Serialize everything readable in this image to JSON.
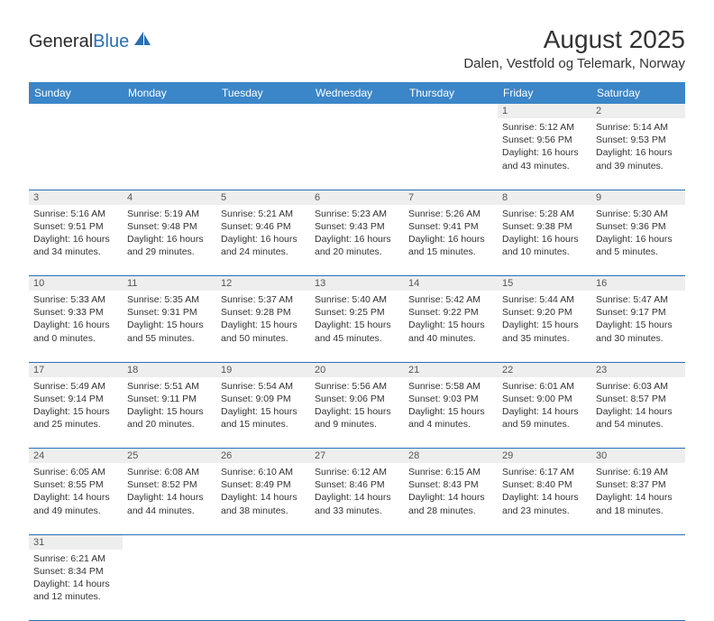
{
  "logo": {
    "text_dark": "General",
    "text_blue": "Blue"
  },
  "title": "August 2025",
  "location": "Dalen, Vestfold og Telemark, Norway",
  "colors": {
    "header_bg": "#3b86c8",
    "header_text": "#ffffff",
    "daynum_bg": "#eeeeee",
    "border": "#2a6fb5",
    "logo_blue": "#2a6fb5",
    "text": "#333333"
  },
  "typography": {
    "title_fontsize": 28,
    "location_fontsize": 15,
    "dayheader_fontsize": 12,
    "cell_fontsize": 10.5,
    "logo_fontsize": 20
  },
  "day_headers": [
    "Sunday",
    "Monday",
    "Tuesday",
    "Wednesday",
    "Thursday",
    "Friday",
    "Saturday"
  ],
  "weeks": [
    [
      null,
      null,
      null,
      null,
      null,
      {
        "n": "1",
        "sunrise": "5:12 AM",
        "sunset": "9:56 PM",
        "daylight": "16 hours and 43 minutes."
      },
      {
        "n": "2",
        "sunrise": "5:14 AM",
        "sunset": "9:53 PM",
        "daylight": "16 hours and 39 minutes."
      }
    ],
    [
      {
        "n": "3",
        "sunrise": "5:16 AM",
        "sunset": "9:51 PM",
        "daylight": "16 hours and 34 minutes."
      },
      {
        "n": "4",
        "sunrise": "5:19 AM",
        "sunset": "9:48 PM",
        "daylight": "16 hours and 29 minutes."
      },
      {
        "n": "5",
        "sunrise": "5:21 AM",
        "sunset": "9:46 PM",
        "daylight": "16 hours and 24 minutes."
      },
      {
        "n": "6",
        "sunrise": "5:23 AM",
        "sunset": "9:43 PM",
        "daylight": "16 hours and 20 minutes."
      },
      {
        "n": "7",
        "sunrise": "5:26 AM",
        "sunset": "9:41 PM",
        "daylight": "16 hours and 15 minutes."
      },
      {
        "n": "8",
        "sunrise": "5:28 AM",
        "sunset": "9:38 PM",
        "daylight": "16 hours and 10 minutes."
      },
      {
        "n": "9",
        "sunrise": "5:30 AM",
        "sunset": "9:36 PM",
        "daylight": "16 hours and 5 minutes."
      }
    ],
    [
      {
        "n": "10",
        "sunrise": "5:33 AM",
        "sunset": "9:33 PM",
        "daylight": "16 hours and 0 minutes."
      },
      {
        "n": "11",
        "sunrise": "5:35 AM",
        "sunset": "9:31 PM",
        "daylight": "15 hours and 55 minutes."
      },
      {
        "n": "12",
        "sunrise": "5:37 AM",
        "sunset": "9:28 PM",
        "daylight": "15 hours and 50 minutes."
      },
      {
        "n": "13",
        "sunrise": "5:40 AM",
        "sunset": "9:25 PM",
        "daylight": "15 hours and 45 minutes."
      },
      {
        "n": "14",
        "sunrise": "5:42 AM",
        "sunset": "9:22 PM",
        "daylight": "15 hours and 40 minutes."
      },
      {
        "n": "15",
        "sunrise": "5:44 AM",
        "sunset": "9:20 PM",
        "daylight": "15 hours and 35 minutes."
      },
      {
        "n": "16",
        "sunrise": "5:47 AM",
        "sunset": "9:17 PM",
        "daylight": "15 hours and 30 minutes."
      }
    ],
    [
      {
        "n": "17",
        "sunrise": "5:49 AM",
        "sunset": "9:14 PM",
        "daylight": "15 hours and 25 minutes."
      },
      {
        "n": "18",
        "sunrise": "5:51 AM",
        "sunset": "9:11 PM",
        "daylight": "15 hours and 20 minutes."
      },
      {
        "n": "19",
        "sunrise": "5:54 AM",
        "sunset": "9:09 PM",
        "daylight": "15 hours and 15 minutes."
      },
      {
        "n": "20",
        "sunrise": "5:56 AM",
        "sunset": "9:06 PM",
        "daylight": "15 hours and 9 minutes."
      },
      {
        "n": "21",
        "sunrise": "5:58 AM",
        "sunset": "9:03 PM",
        "daylight": "15 hours and 4 minutes."
      },
      {
        "n": "22",
        "sunrise": "6:01 AM",
        "sunset": "9:00 PM",
        "daylight": "14 hours and 59 minutes."
      },
      {
        "n": "23",
        "sunrise": "6:03 AM",
        "sunset": "8:57 PM",
        "daylight": "14 hours and 54 minutes."
      }
    ],
    [
      {
        "n": "24",
        "sunrise": "6:05 AM",
        "sunset": "8:55 PM",
        "daylight": "14 hours and 49 minutes."
      },
      {
        "n": "25",
        "sunrise": "6:08 AM",
        "sunset": "8:52 PM",
        "daylight": "14 hours and 44 minutes."
      },
      {
        "n": "26",
        "sunrise": "6:10 AM",
        "sunset": "8:49 PM",
        "daylight": "14 hours and 38 minutes."
      },
      {
        "n": "27",
        "sunrise": "6:12 AM",
        "sunset": "8:46 PM",
        "daylight": "14 hours and 33 minutes."
      },
      {
        "n": "28",
        "sunrise": "6:15 AM",
        "sunset": "8:43 PM",
        "daylight": "14 hours and 28 minutes."
      },
      {
        "n": "29",
        "sunrise": "6:17 AM",
        "sunset": "8:40 PM",
        "daylight": "14 hours and 23 minutes."
      },
      {
        "n": "30",
        "sunrise": "6:19 AM",
        "sunset": "8:37 PM",
        "daylight": "14 hours and 18 minutes."
      }
    ],
    [
      {
        "n": "31",
        "sunrise": "6:21 AM",
        "sunset": "8:34 PM",
        "daylight": "14 hours and 12 minutes."
      },
      null,
      null,
      null,
      null,
      null,
      null
    ]
  ],
  "labels": {
    "sunrise": "Sunrise: ",
    "sunset": "Sunset: ",
    "daylight": "Daylight: "
  }
}
